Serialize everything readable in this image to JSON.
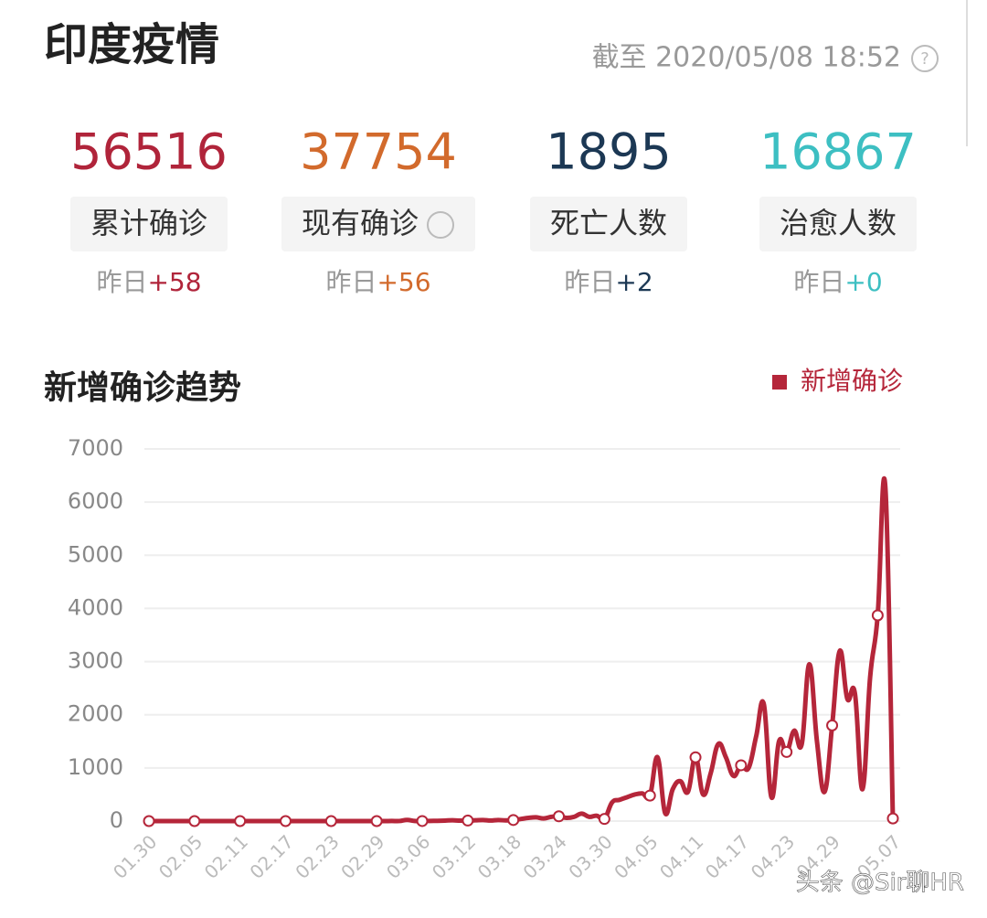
{
  "header": {
    "title": "印度疫情",
    "timestamp": "截至 2020/05/08 18:52"
  },
  "stats": [
    {
      "value": 56516,
      "label": "累计确诊",
      "yesterday": "昨日",
      "delta": "+58",
      "color": "#b0243a"
    },
    {
      "value": 37754,
      "label": "现有确诊",
      "yesterday": "昨日",
      "delta": "+56",
      "color": "#d26a2c"
    },
    {
      "value": 1895,
      "label": "死亡人数",
      "yesterday": "昨日",
      "delta": "+2",
      "color": "#1c3854"
    },
    {
      "value": 16867,
      "label": "治愈人数",
      "yesterday": "昨日",
      "delta": "+0",
      "color": "#3dbfc2"
    }
  ],
  "chart_data": {
    "type": "line",
    "title": "新增确诊趋势",
    "categories": [
      "01.30",
      null,
      null,
      null,
      null,
      null,
      "02.05",
      null,
      null,
      null,
      null,
      null,
      "02.11",
      null,
      null,
      null,
      null,
      null,
      "02.17",
      null,
      null,
      null,
      null,
      null,
      "02.23",
      null,
      null,
      null,
      null,
      null,
      "02.29",
      null,
      null,
      null,
      null,
      null,
      "03.06",
      null,
      null,
      null,
      null,
      null,
      "03.12",
      null,
      null,
      null,
      null,
      null,
      "03.18",
      null,
      null,
      null,
      null,
      null,
      "03.24",
      null,
      null,
      null,
      null,
      null,
      "03.30",
      null,
      null,
      null,
      null,
      null,
      "04.05",
      null,
      null,
      null,
      null,
      null,
      "04.11",
      null,
      null,
      null,
      null,
      null,
      "04.17",
      null,
      null,
      null,
      null,
      null,
      "04.23",
      null,
      null,
      null,
      null,
      null,
      "04.29",
      null,
      null,
      null,
      null,
      null,
      null,
      null,
      "05.07"
    ],
    "series": [
      {
        "name": "新增确诊",
        "color": "#b5263a",
        "values": [
          0,
          0,
          0,
          0,
          0,
          0,
          0,
          0,
          0,
          0,
          0,
          0,
          0,
          0,
          0,
          0,
          0,
          0,
          0,
          0,
          0,
          0,
          0,
          0,
          0,
          0,
          0,
          0,
          0,
          0,
          0,
          0,
          2,
          1,
          22,
          2,
          1,
          3,
          5,
          9,
          15,
          8,
          10,
          14,
          20,
          10,
          20,
          12,
          20,
          40,
          60,
          70,
          50,
          80,
          90,
          60,
          80,
          140,
          80,
          100,
          40,
          350,
          400,
          450,
          500,
          520,
          480,
          1200,
          150,
          600,
          750,
          550,
          1200,
          500,
          900,
          1450,
          1200,
          850,
          1050,
          1000,
          1600,
          2200,
          450,
          1500,
          1300,
          1700,
          1450,
          2950,
          1500,
          550,
          1800,
          3200,
          2300,
          2400,
          600,
          2700,
          3870,
          6300,
          50
        ]
      }
    ],
    "ylim": [
      0,
      7000
    ],
    "yticks": [
      0,
      1000,
      2000,
      3000,
      4000,
      5000,
      6000,
      7000
    ],
    "grid": true,
    "legend": "top-right",
    "marker_every": 6
  },
  "watermark": "头条 @Sir聊HR"
}
